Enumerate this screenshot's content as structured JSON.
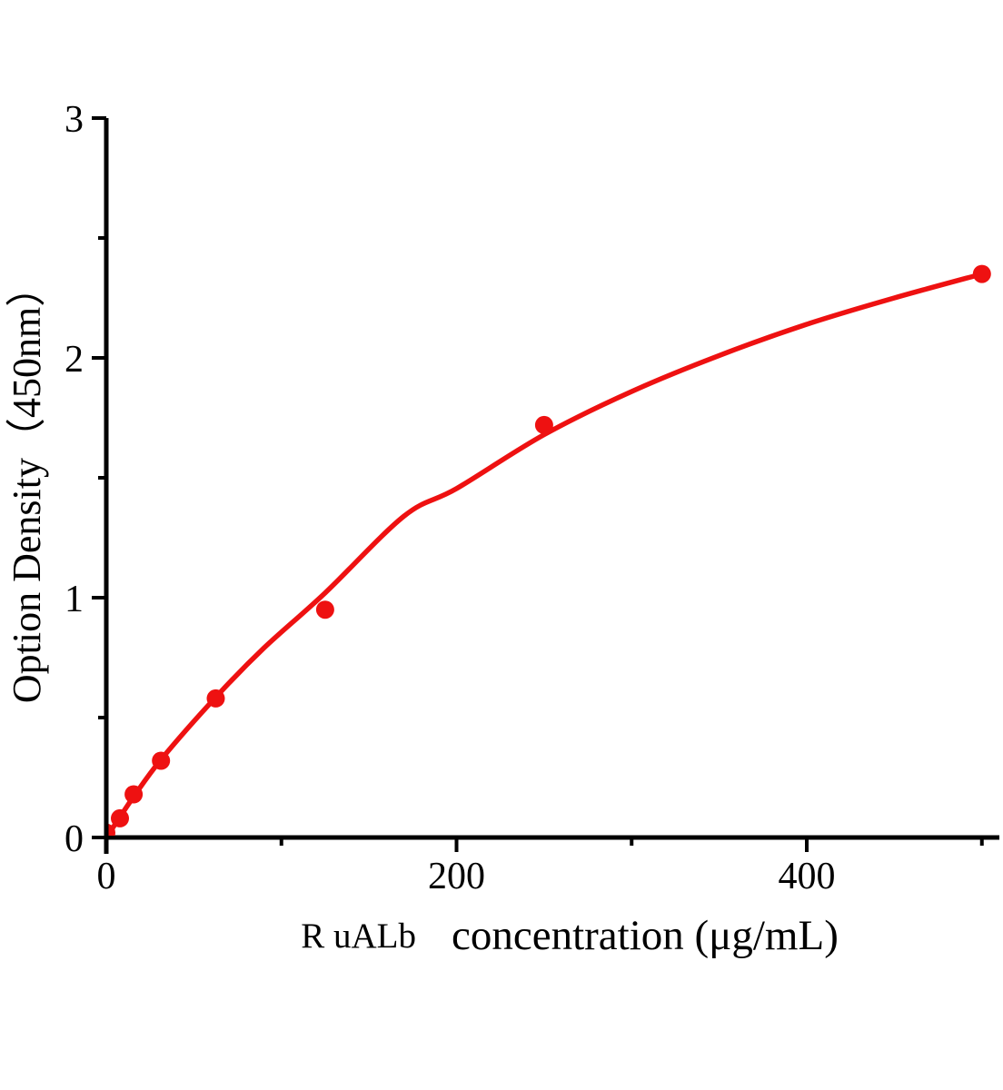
{
  "page": {
    "background_color": "#ffffff"
  },
  "chart_data": {
    "type": "scatter",
    "title": "",
    "xlabel_prefix": "R uALb",
    "xlabel": "concentration (μg/mL)",
    "ylabel": "Option Density（450nm）",
    "xlim": [
      0,
      510
    ],
    "ylim": [
      0,
      3
    ],
    "grid": false,
    "legend": "none",
    "x_ticks_major": [
      0,
      200,
      400
    ],
    "x_ticks_minor": [
      100,
      300,
      500
    ],
    "y_ticks_major": [
      0,
      1,
      2,
      3
    ],
    "y_ticks_minor": [
      0.5,
      1.5,
      2.5
    ],
    "accent_color": "#ee1111",
    "axis_color": "#000000",
    "series": [
      {
        "name": "standard-points",
        "type": "scatter",
        "x": [
          0,
          7.8,
          15.6,
          31.25,
          62.5,
          125,
          250,
          500
        ],
        "y": [
          0.02,
          0.08,
          0.18,
          0.32,
          0.58,
          0.95,
          1.72,
          2.35
        ]
      },
      {
        "name": "fitted-curve",
        "type": "line",
        "x": [
          0,
          7.8,
          15.6,
          31.25,
          62.5,
          90,
          125,
          170,
          200,
          250,
          300,
          350,
          400,
          450,
          500
        ],
        "y": [
          0.0,
          0.085,
          0.17,
          0.325,
          0.585,
          0.79,
          1.02,
          1.34,
          1.455,
          1.68,
          1.86,
          2.01,
          2.14,
          2.25,
          2.35
        ]
      }
    ]
  }
}
